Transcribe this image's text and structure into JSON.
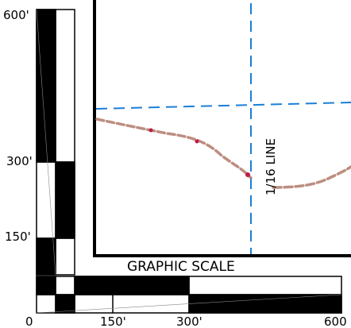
{
  "scale": {
    "title": "GRAPHIC SCALE",
    "vertical_labels": [
      "600'",
      "300'",
      "150'"
    ],
    "horizontal_labels": [
      "0",
      "150'",
      "300'",
      "600"
    ]
  },
  "map": {
    "line_label": "1/16 LINE",
    "colors": {
      "frame": "#000000",
      "dashed_line": "#1a7fd6",
      "boundary_trace": "#b07a6a"
    }
  }
}
